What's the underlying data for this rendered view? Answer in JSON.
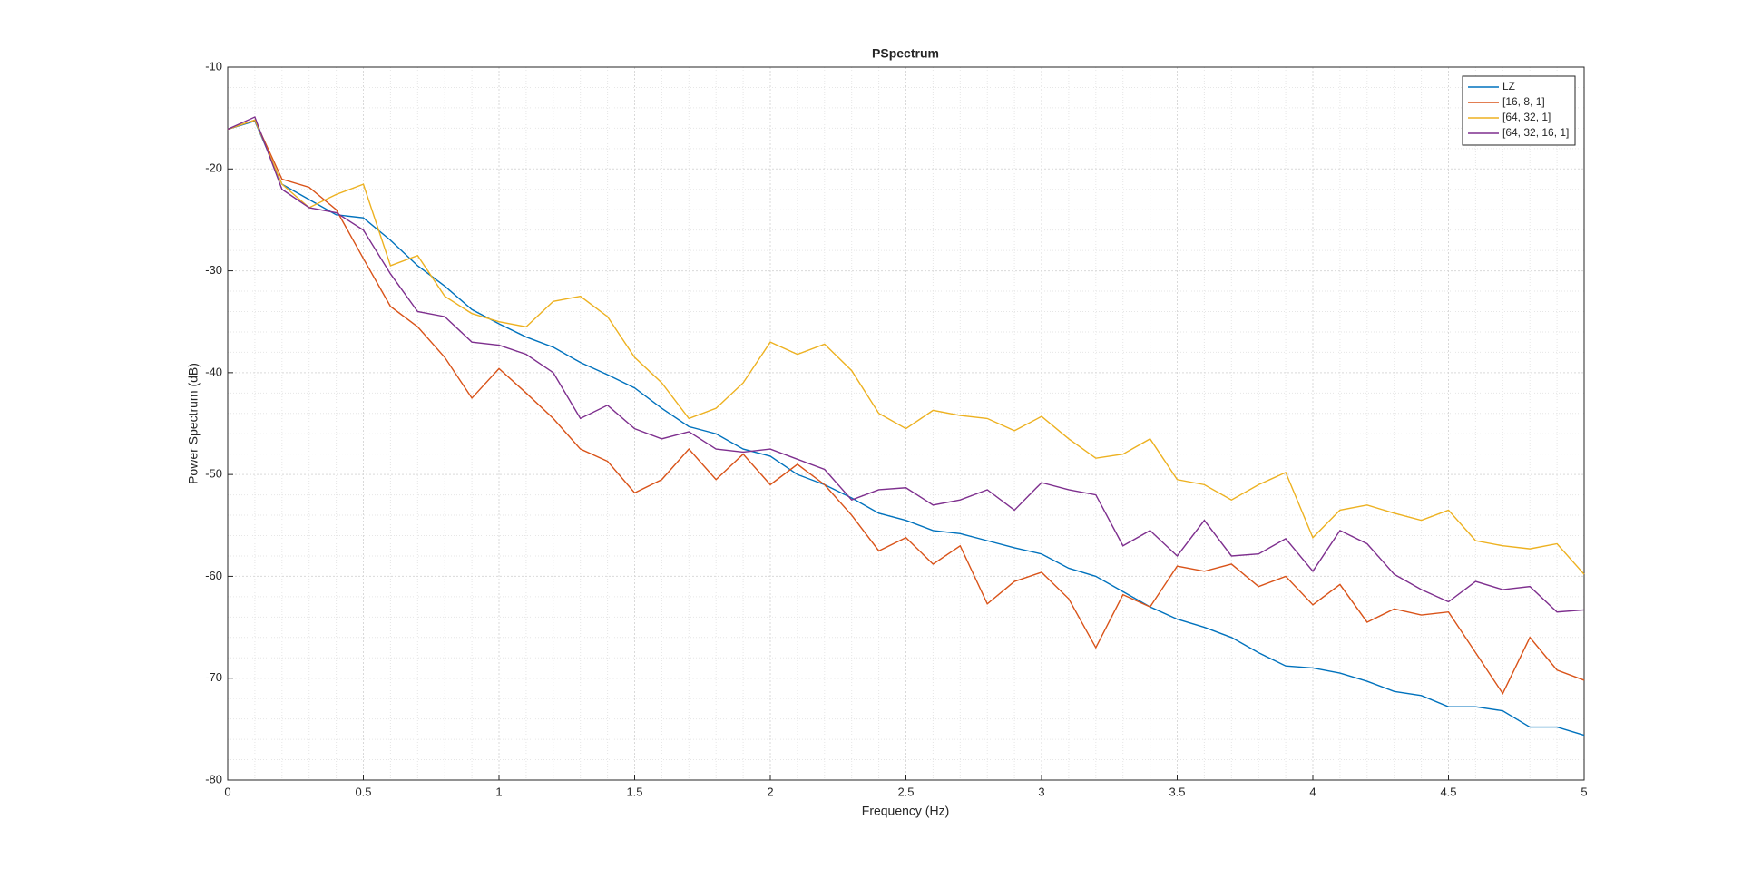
{
  "chart_data": {
    "type": "line",
    "title": "PSpectrum",
    "x_label": "Frequency (Hz)",
    "y_label": "Power Spectrum (dB)",
    "x": [
      0,
      0.1,
      0.2,
      0.3,
      0.4,
      0.5,
      0.6,
      0.7,
      0.8,
      0.9,
      1.0,
      1.1,
      1.2,
      1.3,
      1.4,
      1.5,
      1.6,
      1.7,
      1.8,
      1.9,
      2.0,
      2.1,
      2.2,
      2.3,
      2.4,
      2.5,
      2.6,
      2.7,
      2.8,
      2.9,
      3.0,
      3.1,
      3.2,
      3.3,
      3.4,
      3.5,
      3.6,
      3.7,
      3.8,
      3.9,
      4.0,
      4.1,
      4.2,
      4.3,
      4.4,
      4.5,
      4.6,
      4.7,
      4.8,
      4.9,
      5.0
    ],
    "series": [
      {
        "name": "LZ",
        "color": "#0072BD",
        "values": [
          -16.1,
          -15.3,
          -21.5,
          -23,
          -24.5,
          -24.8,
          -27,
          -29.5,
          -31.5,
          -33.8,
          -35.2,
          -36.5,
          -37.5,
          -39,
          -40.2,
          -41.5,
          -43.5,
          -45.3,
          -46,
          -47.5,
          -48.2,
          -50,
          -51,
          -52.3,
          -53.8,
          -54.5,
          -55.5,
          -55.8,
          -56.5,
          -57.2,
          -57.8,
          -59.2,
          -60,
          -61.5,
          -63,
          -64.2,
          -65,
          -66,
          -67.5,
          -68.8,
          -69,
          -69.5,
          -70.3,
          -71.3,
          -71.7,
          -72.8,
          -72.8,
          -73.2,
          -74.8,
          -74.8,
          -75.6
        ]
      },
      {
        "name": "[16, 8, 1]",
        "color": "#D95319",
        "values": [
          -16.1,
          -15.2,
          -21,
          -21.8,
          -24,
          -28.8,
          -33.5,
          -35.5,
          -38.5,
          -42.5,
          -39.6,
          -42,
          -44.5,
          -47.5,
          -48.7,
          -51.8,
          -50.5,
          -47.5,
          -50.5,
          -48,
          -51,
          -49,
          -51,
          -54,
          -57.5,
          -56.2,
          -58.8,
          -57,
          -62.7,
          -60.5,
          -59.6,
          -62.2,
          -67,
          -61.8,
          -63,
          -59,
          -59.5,
          -58.8,
          -61,
          -60,
          -62.8,
          -60.8,
          -64.5,
          -63.2,
          -63.8,
          -63.5,
          -67.5,
          -71.5,
          -66,
          -69.2,
          -70.2
        ]
      },
      {
        "name": "[64, 32, 1]",
        "color": "#EDB120",
        "values": [
          -16.1,
          -15.2,
          -21.5,
          -23.8,
          -22.5,
          -21.5,
          -29.5,
          -28.5,
          -32.5,
          -34.2,
          -35,
          -35.5,
          -33,
          -32.5,
          -34.5,
          -38.5,
          -41,
          -44.5,
          -43.5,
          -41,
          -37,
          -38.2,
          -37.2,
          -39.8,
          -44,
          -45.5,
          -43.7,
          -44.2,
          -44.5,
          -45.7,
          -44.3,
          -46.5,
          -48.4,
          -48,
          -46.5,
          -50.5,
          -51,
          -52.5,
          -51,
          -49.8,
          -56.2,
          -53.5,
          -53,
          -53.8,
          -54.5,
          -53.5,
          -56.5,
          -57,
          -57.3,
          -56.8,
          -59.8
        ]
      },
      {
        "name": "[64, 32, 16, 1]",
        "color": "#7E2F8E",
        "values": [
          -16.1,
          -14.9,
          -22,
          -23.8,
          -24.3,
          -26,
          -30.3,
          -34,
          -34.5,
          -37,
          -37.3,
          -38.2,
          -40,
          -44.5,
          -43.2,
          -45.5,
          -46.5,
          -45.8,
          -47.5,
          -47.8,
          -47.5,
          -48.5,
          -49.5,
          -52.5,
          -51.5,
          -51.3,
          -53,
          -52.5,
          -51.5,
          -53.5,
          -50.8,
          -51.5,
          -52,
          -57,
          -55.5,
          -58,
          -54.5,
          -58,
          -57.8,
          -56.3,
          -59.5,
          -55.5,
          -56.8,
          -59.8,
          -61.3,
          -62.5,
          -60.5,
          -61.3,
          -61,
          -63.5,
          -63.3
        ]
      }
    ],
    "xlim": [
      0,
      5
    ],
    "xticks": [
      0,
      0.5,
      1,
      1.5,
      2,
      2.5,
      3,
      3.5,
      4,
      4.5,
      5
    ],
    "ylim": [
      -80,
      -10
    ],
    "yticks": [
      -80,
      -70,
      -60,
      -50,
      -40,
      -30,
      -20,
      -10
    ],
    "grid": true,
    "minor_grid": true,
    "legend": "top-right"
  }
}
